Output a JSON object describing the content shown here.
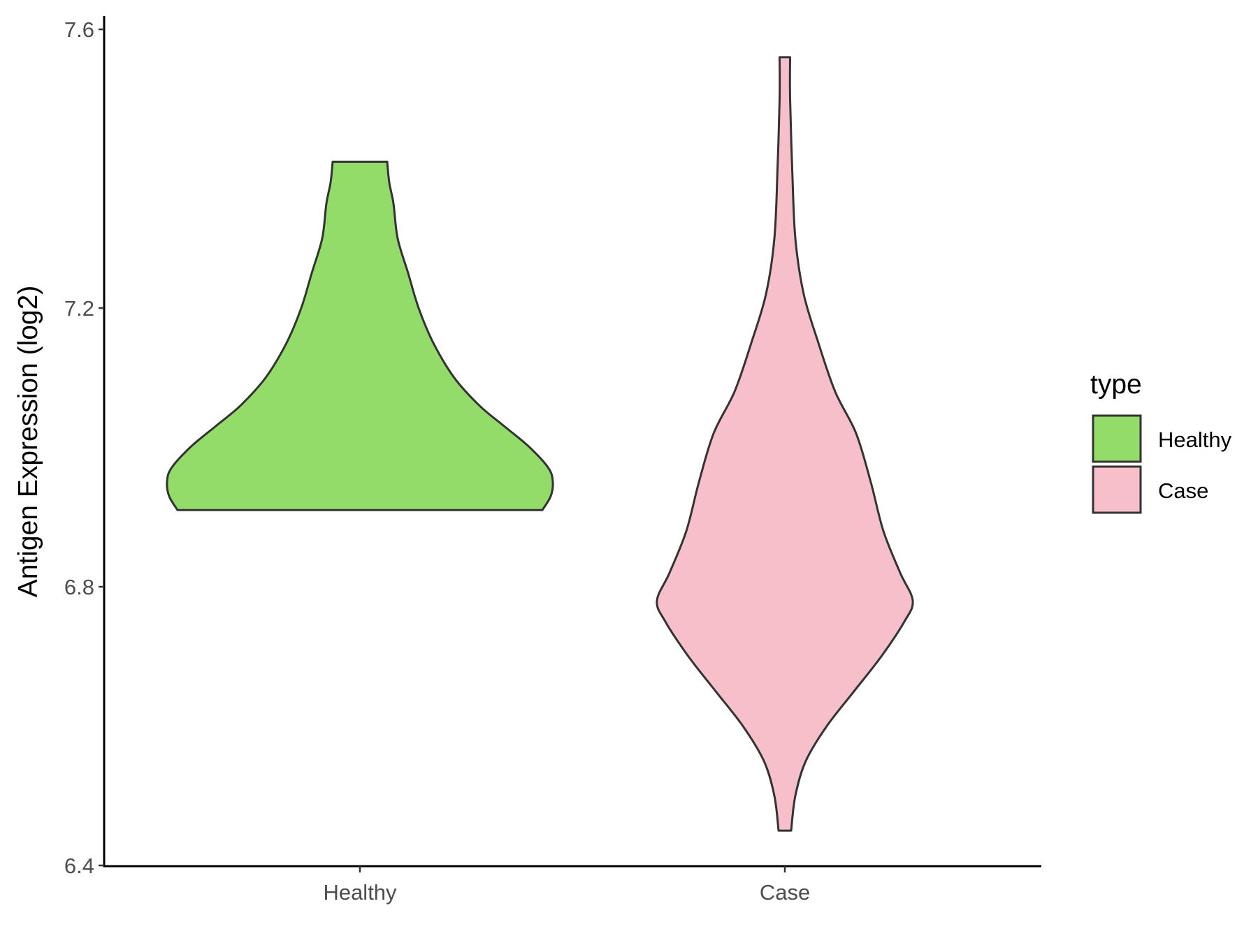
{
  "chart_data": {
    "type": "violin",
    "ylabel": "Antigen Expression (log2)",
    "xlabel": "",
    "ylim": [
      6.4,
      7.6
    ],
    "y_ticks": [
      "6.4",
      "6.8",
      "7.2",
      "7.6"
    ],
    "categories": [
      "Healthy",
      "Case"
    ],
    "grid": false,
    "legend": {
      "title": "type",
      "position": "right",
      "entries": [
        "Healthy",
        "Case"
      ]
    },
    "colors": {
      "Healthy": "#93dc6a",
      "Case": "#f7bfca",
      "outline": "#333333"
    },
    "series": [
      {
        "name": "Healthy",
        "min": 6.91,
        "max": 7.41,
        "density": [
          [
            6.91,
            0.87
          ],
          [
            6.93,
            0.91
          ],
          [
            6.95,
            0.92
          ],
          [
            6.97,
            0.9
          ],
          [
            7.0,
            0.81
          ],
          [
            7.03,
            0.69
          ],
          [
            7.06,
            0.57
          ],
          [
            7.1,
            0.45
          ],
          [
            7.15,
            0.35
          ],
          [
            7.2,
            0.28
          ],
          [
            7.25,
            0.23
          ],
          [
            7.3,
            0.18
          ],
          [
            7.35,
            0.16
          ],
          [
            7.38,
            0.14
          ],
          [
            7.41,
            0.13
          ]
        ]
      },
      {
        "name": "Case",
        "min": 6.45,
        "max": 7.56,
        "density": [
          [
            6.45,
            0.03
          ],
          [
            6.5,
            0.05
          ],
          [
            6.55,
            0.1
          ],
          [
            6.6,
            0.2
          ],
          [
            6.65,
            0.33
          ],
          [
            6.7,
            0.46
          ],
          [
            6.75,
            0.57
          ],
          [
            6.78,
            0.61
          ],
          [
            6.82,
            0.55
          ],
          [
            6.88,
            0.47
          ],
          [
            6.95,
            0.41
          ],
          [
            7.02,
            0.34
          ],
          [
            7.08,
            0.24
          ],
          [
            7.15,
            0.16
          ],
          [
            7.22,
            0.09
          ],
          [
            7.3,
            0.05
          ],
          [
            7.4,
            0.035
          ],
          [
            7.5,
            0.025
          ],
          [
            7.56,
            0.025
          ]
        ]
      }
    ]
  }
}
